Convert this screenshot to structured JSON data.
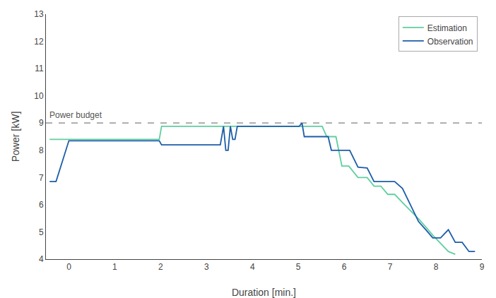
{
  "chart_data": {
    "type": "line",
    "xlabel": "Duration [min.]",
    "ylabel": "Power [kW]",
    "xlim": [
      -0.5,
      9.0
    ],
    "ylim": [
      4,
      13
    ],
    "xticks": [
      0,
      1,
      2,
      3,
      4,
      5,
      6,
      7,
      8,
      9
    ],
    "yticks": [
      4,
      5,
      6,
      7,
      8,
      9,
      10,
      11,
      12,
      13
    ],
    "grid": false,
    "legend": "upper right",
    "hline": {
      "y": 9,
      "label": "Power budget",
      "color": "#808080",
      "line_style": "dashed"
    },
    "series": [
      {
        "name": "Estimation",
        "color": "#5ecfa0",
        "x": [
          -0.42,
          -0.42,
          1.97,
          1.97,
          2.02,
          2.02,
          3.3,
          3.3,
          5.52,
          5.52,
          5.62,
          5.62,
          5.72,
          5.72,
          5.82,
          5.82,
          5.95,
          5.95,
          6.1,
          6.1,
          6.3,
          6.3,
          6.5,
          6.5,
          6.65,
          6.65,
          6.8,
          6.8,
          6.95,
          6.95,
          7.1,
          7.1,
          7.27,
          7.27,
          7.45,
          7.45,
          7.62,
          7.62,
          7.78,
          7.78,
          7.93,
          7.93,
          8.1,
          8.1,
          8.27,
          8.27,
          8.42
        ],
        "values": [
          8.4,
          8.4,
          8.4,
          8.4,
          8.88,
          8.88,
          8.88,
          8.88,
          8.88,
          8.88,
          8.5,
          8.5,
          8.5,
          8.5,
          8.5,
          8.5,
          7.42,
          7.42,
          7.42,
          7.42,
          7.0,
          7.0,
          7.0,
          7.0,
          6.68,
          6.68,
          6.68,
          6.68,
          6.38,
          6.38,
          6.38,
          6.38,
          6.08,
          6.08,
          5.78,
          5.78,
          5.48,
          5.48,
          5.18,
          5.18,
          4.88,
          4.88,
          4.58,
          4.58,
          4.28,
          4.28,
          4.18
        ]
      },
      {
        "name": "Observation",
        "color": "#1c5ca8",
        "x": [
          -0.42,
          -0.42,
          -0.28,
          -0.28,
          0.0,
          0.0,
          1.97,
          1.97,
          2.02,
          2.02,
          3.3,
          3.3,
          3.37,
          3.37,
          3.42,
          3.42,
          3.47,
          3.47,
          3.52,
          3.52,
          3.57,
          3.57,
          3.62,
          3.62,
          3.67,
          3.67,
          3.72,
          3.72,
          4.0,
          4.0,
          4.9,
          4.9,
          5.02,
          5.02,
          5.08,
          5.08,
          5.13,
          5.13,
          5.52,
          5.52,
          5.58,
          5.58,
          5.65,
          5.65,
          5.72,
          5.72,
          5.8,
          5.8,
          5.9,
          5.9,
          6.0,
          6.0,
          6.12,
          6.12,
          6.3,
          6.3,
          6.5,
          6.5,
          6.65,
          6.65,
          6.8,
          6.8,
          6.95,
          6.95,
          7.1,
          7.1,
          7.27,
          7.27,
          7.45,
          7.45,
          7.62,
          7.62,
          7.78,
          7.78,
          7.93,
          7.93,
          8.1,
          8.1,
          8.27,
          8.27,
          8.42,
          8.42,
          8.57,
          8.57,
          8.72,
          8.72,
          8.85
        ],
        "values": [
          6.85,
          6.85,
          6.85,
          6.85,
          8.35,
          8.35,
          8.35,
          8.35,
          8.2,
          8.2,
          8.2,
          8.2,
          8.88,
          8.88,
          8.0,
          8.0,
          8.0,
          8.0,
          8.88,
          8.88,
          8.4,
          8.4,
          8.4,
          8.4,
          8.88,
          8.88,
          8.88,
          8.88,
          8.88,
          8.88,
          8.88,
          8.88,
          8.88,
          8.88,
          9.0,
          9.0,
          8.5,
          8.5,
          8.5,
          8.5,
          8.5,
          8.5,
          8.5,
          8.5,
          8.0,
          8.0,
          8.0,
          8.0,
          8.0,
          8.0,
          8.0,
          8.0,
          8.0,
          8.0,
          7.38,
          7.38,
          7.35,
          7.35,
          6.85,
          6.85,
          6.85,
          6.85,
          6.85,
          6.85,
          6.85,
          6.85,
          6.6,
          6.6,
          5.98,
          5.98,
          5.38,
          5.38,
          5.08,
          5.08,
          4.78,
          4.78,
          4.78,
          4.78,
          5.08,
          5.08,
          4.62,
          4.62,
          4.62,
          4.62,
          4.28,
          4.28,
          4.28
        ]
      }
    ]
  }
}
